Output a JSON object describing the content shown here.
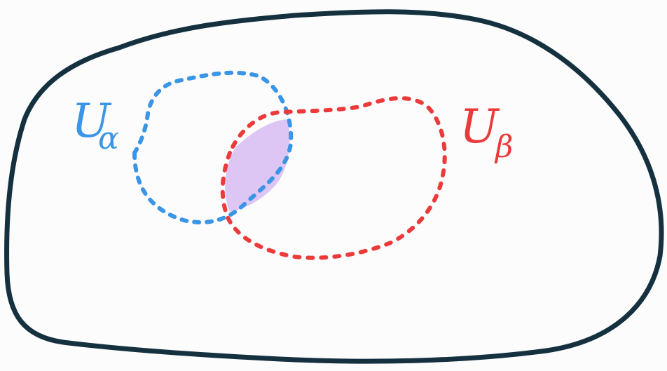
{
  "diagram": {
    "space": {
      "stroke_color": "#15313f"
    },
    "set_alpha": {
      "label_letter": "U",
      "label_subscript": "α",
      "color": "#3b95e6"
    },
    "set_beta": {
      "label_letter": "U",
      "label_subscript": "β",
      "color": "#ec3a3a"
    },
    "intersection": {
      "fill_color": "#ddc6f3"
    },
    "background_color": "#fcfcfd"
  }
}
